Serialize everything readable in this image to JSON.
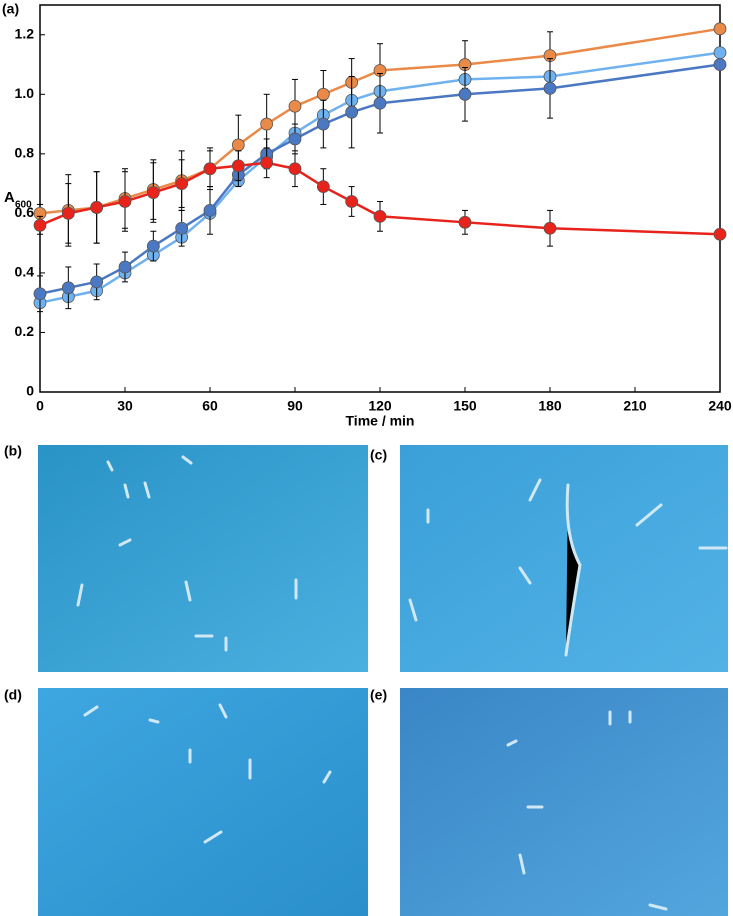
{
  "chart_data": {
    "type": "line",
    "panel_label": "(a)",
    "xlabel": "Time / min",
    "ylabel": "A",
    "ylabel_subscript": "600",
    "x": [
      0,
      10,
      20,
      30,
      40,
      50,
      60,
      70,
      80,
      90,
      100,
      110,
      120,
      150,
      180,
      240
    ],
    "xlim": [
      0,
      240
    ],
    "xticks": [
      0,
      30,
      60,
      90,
      120,
      150,
      180,
      210,
      240
    ],
    "ylim": [
      0,
      1.3
    ],
    "yticks": [
      0,
      0.2,
      0.4,
      0.6,
      0.8,
      {
        "value": 1,
        "label": "1.0"
      },
      1.2
    ],
    "grid": false,
    "series": [
      {
        "color": "#ea8a48",
        "values": [
          0.6,
          0.61,
          0.62,
          0.65,
          0.68,
          0.71,
          0.75,
          0.83,
          0.9,
          0.96,
          1.0,
          1.04,
          1.08,
          1.1,
          1.13,
          1.22
        ],
        "errors": [
          0.03,
          0.12,
          0.12,
          0.1,
          0.1,
          0.1,
          0.07,
          0.1,
          0.1,
          0.09,
          0.08,
          0.08,
          0.09,
          0.08,
          0.08,
          null
        ]
      },
      {
        "color": "#6fb2ef",
        "values": [
          0.3,
          0.32,
          0.34,
          0.4,
          0.46,
          0.52,
          0.6,
          0.71,
          0.79,
          0.87,
          0.93,
          0.98,
          1.01,
          1.05,
          1.06,
          1.14
        ],
        "errors": [
          null,
          null,
          null,
          null,
          null,
          null,
          null,
          null,
          null,
          null,
          null,
          null,
          null,
          null,
          null,
          null
        ]
      },
      {
        "color": "#4a78c2",
        "values": [
          0.33,
          0.35,
          0.37,
          0.42,
          0.49,
          0.55,
          0.61,
          0.73,
          0.8,
          0.85,
          0.9,
          0.94,
          0.97,
          1.0,
          1.02,
          1.1
        ],
        "errors": [
          0.06,
          0.07,
          0.06,
          0.05,
          0.05,
          0.06,
          0.08,
          0.04,
          0.05,
          0.05,
          0.08,
          0.12,
          0.1,
          0.09,
          0.1,
          null
        ]
      },
      {
        "color": "#e8231c",
        "values": [
          0.56,
          0.6,
          0.62,
          0.64,
          0.67,
          0.7,
          0.75,
          0.76,
          0.77,
          0.75,
          0.69,
          0.64,
          0.59,
          0.57,
          0.55,
          0.53
        ],
        "errors": [
          0.03,
          0.1,
          0.12,
          0.1,
          0.1,
          0.08,
          0.06,
          0.05,
          0.05,
          0.06,
          0.06,
          0.05,
          0.05,
          0.04,
          0.06,
          null
        ]
      }
    ]
  },
  "panels": [
    "(b)",
    "(c)",
    "(d)",
    "(e)"
  ]
}
